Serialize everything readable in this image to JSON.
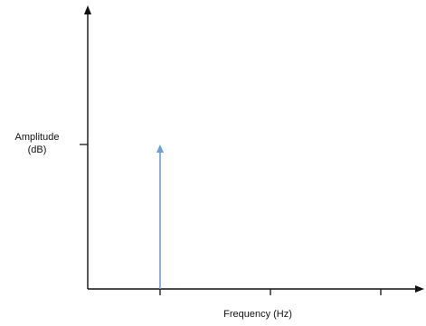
{
  "chart_data": {
    "type": "bar",
    "title": "",
    "xlabel": "Frequency (Hz)",
    "ylabel_lines": [
      "Amplitude",
      "(dB)"
    ],
    "x_ticks": 3,
    "y_ticks": 1,
    "series": [
      {
        "x_tick_index": 1,
        "amplitude_at_y_tick": 1
      }
    ],
    "grid": false,
    "colors": {
      "axis": "#111111",
      "signal": "#6a9fd4"
    }
  }
}
